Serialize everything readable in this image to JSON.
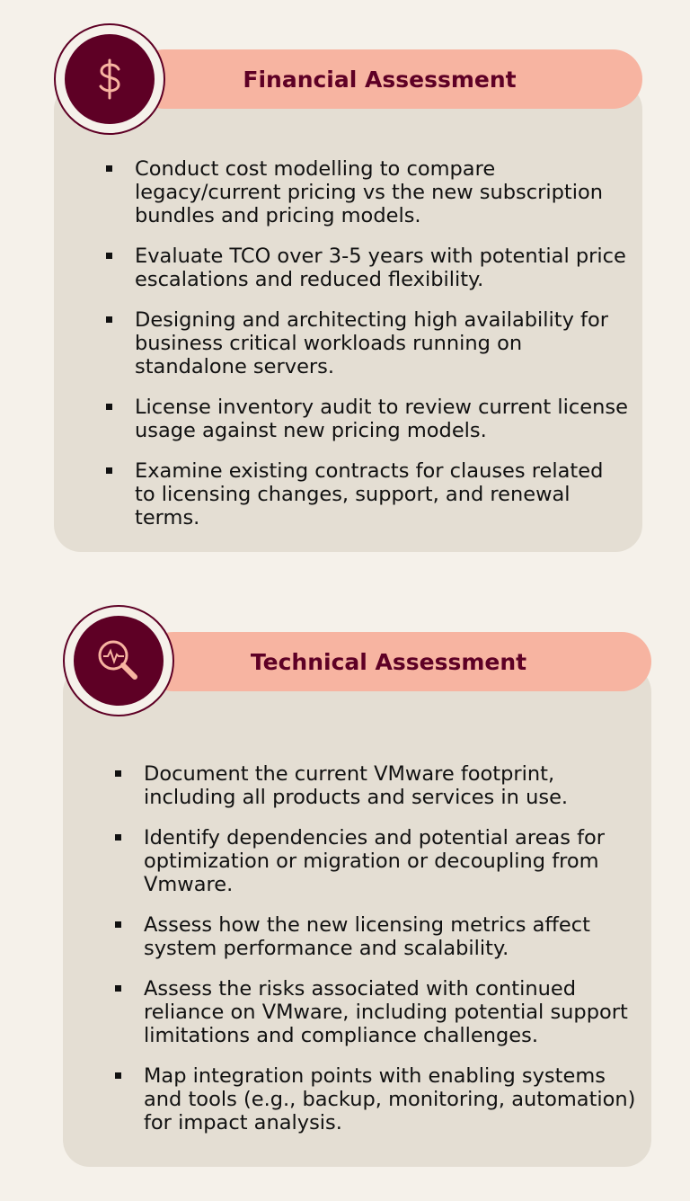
{
  "sections": [
    {
      "title": "Financial Assessment",
      "icon": "dollar-icon",
      "items": [
        "Conduct cost modelling to compare legacy/current pricing vs the new subscription bundles and pricing models.",
        "Evaluate TCO over 3-5 years with potential price escalations and reduced flexibility.",
        "Designing and architecting high availability for business critical workloads running on standalone servers.",
        "License inventory audit to review current license usage against new pricing models.",
        "Examine existing contracts for clauses related to licensing changes, support, and renewal terms."
      ]
    },
    {
      "title": "Technical Assessment",
      "icon": "magnifier-pulse-icon",
      "items": [
        "Document the current VMware footprint, including all products and services in use.",
        "Identify dependencies and potential areas for optimization or migration or decoupling from Vmware.",
        "Assess how the new licensing metrics affect system performance and scalability.",
        "Assess the risks associated with continued reliance on VMware, including potential support limitations and compliance challenges.",
        "Map integration points with enabling systems and tools (e.g., backup, monitoring, automation) for impact analysis."
      ]
    }
  ],
  "colors": {
    "accent": "#5e0025",
    "pill": "#f7b4a1",
    "card": "#e4ded3",
    "background": "#f5f1ea"
  }
}
